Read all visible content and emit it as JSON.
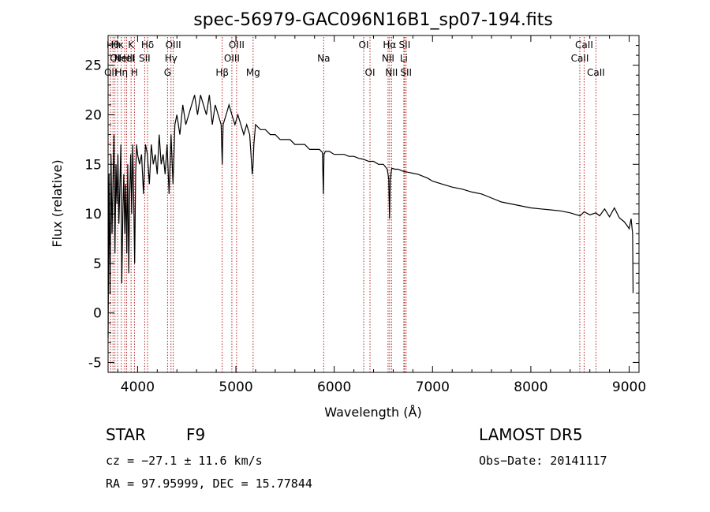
{
  "chart_data": {
    "type": "line",
    "title": "spec-56979-GAC096N16B1_sp07-194.fits",
    "xlabel": "Wavelength (Å)",
    "ylabel": "Flux (relative)",
    "xlim": [
      3700,
      9100
    ],
    "ylim": [
      -6,
      28
    ],
    "xticks": [
      4000,
      5000,
      6000,
      7000,
      8000,
      9000
    ],
    "yticks": [
      -5,
      0,
      5,
      10,
      15,
      20,
      25
    ],
    "grid": false,
    "line_color": "#000000",
    "marker_color": "#b22222",
    "series": [
      {
        "x": [
          3700,
          3710,
          3720,
          3730,
          3740,
          3750,
          3760,
          3770,
          3780,
          3790,
          3800,
          3810,
          3820,
          3830,
          3840,
          3850,
          3860,
          3870,
          3880,
          3890,
          3900,
          3910,
          3920,
          3930,
          3940,
          3950,
          3960,
          3970,
          3980,
          3990,
          4000,
          4020,
          4040,
          4060,
          4080,
          4100,
          4120,
          4140,
          4160,
          4180,
          4200,
          4220,
          4240,
          4260,
          4280,
          4300,
          4320,
          4340,
          4360,
          4380,
          4400,
          4430,
          4460,
          4490,
          4520,
          4550,
          4580,
          4610,
          4640,
          4670,
          4700,
          4730,
          4760,
          4790,
          4820,
          4850,
          4861,
          4870,
          4900,
          4930,
          4960,
          4990,
          5020,
          5050,
          5080,
          5110,
          5140,
          5167,
          5175,
          5183,
          5200,
          5250,
          5300,
          5350,
          5400,
          5450,
          5500,
          5550,
          5600,
          5650,
          5700,
          5750,
          5800,
          5850,
          5880,
          5890,
          5896,
          5910,
          5950,
          6000,
          6050,
          6100,
          6150,
          6200,
          6250,
          6300,
          6350,
          6400,
          6450,
          6500,
          6540,
          6555,
          6563,
          6570,
          6585,
          6620,
          6650,
          6700,
          6750,
          6800,
          6850,
          6900,
          6950,
          7000,
          7100,
          7200,
          7300,
          7400,
          7500,
          7600,
          7700,
          7800,
          7900,
          8000,
          8100,
          8200,
          8300,
          8400,
          8500,
          8542,
          8600,
          8662,
          8700,
          8750,
          8800,
          8850,
          8900,
          8950,
          8980,
          9000,
          9020,
          9035,
          9040
        ],
        "y": [
          -2.5,
          14,
          2,
          16,
          8,
          13,
          18,
          6,
          15,
          11,
          16,
          9,
          13,
          17,
          3,
          10,
          14,
          8,
          13,
          6,
          15,
          4,
          12,
          16,
          10,
          17,
          12,
          5,
          14,
          17,
          16,
          15,
          16,
          12,
          17,
          16,
          13,
          17,
          15,
          16,
          14,
          18,
          15,
          16,
          14,
          17,
          12,
          18,
          13,
          19,
          20,
          18,
          21,
          19,
          20,
          21,
          22,
          20,
          22,
          21,
          20,
          22,
          19,
          21,
          20,
          19,
          15,
          19,
          20,
          21,
          20,
          19,
          20,
          19,
          18,
          19,
          18,
          14,
          15,
          17,
          19,
          18.5,
          18.5,
          18,
          18,
          17.5,
          17.5,
          17.5,
          17,
          17,
          17,
          16.5,
          16.5,
          16.5,
          16.2,
          12,
          16,
          16.3,
          16.3,
          16,
          16,
          16,
          15.8,
          15.8,
          15.6,
          15.5,
          15.3,
          15.3,
          15,
          15,
          14.5,
          13.5,
          9.5,
          13.5,
          14.6,
          14.5,
          14.5,
          14.3,
          14.2,
          14.1,
          14,
          13.8,
          13.6,
          13.3,
          13,
          12.7,
          12.5,
          12.2,
          12,
          11.6,
          11.2,
          11,
          10.8,
          10.6,
          10.5,
          10.4,
          10.3,
          10.1,
          9.8,
          10.2,
          9.9,
          10.1,
          9.8,
          10.5,
          9.7,
          10.6,
          9.6,
          9.2,
          8.8,
          8.5,
          9.5,
          8,
          2
        ]
      }
    ],
    "line_markers": [
      {
        "wavelength": 3726,
        "label": "OII",
        "row": 2
      },
      {
        "wavelength": 3750,
        "label": "Hθ",
        "row": 0
      },
      {
        "wavelength": 3770,
        "label": "OI",
        "row": 1
      },
      {
        "wavelength": 3797,
        "label": "Hκ",
        "row": 0
      },
      {
        "wavelength": 3835,
        "label": "Hη",
        "row": 2
      },
      {
        "wavelength": 3869,
        "label": "NeIII",
        "row": 1
      },
      {
        "wavelength": 3889,
        "label": "HeI",
        "row": 1
      },
      {
        "wavelength": 3934,
        "label": "K",
        "row": 0
      },
      {
        "wavelength": 3968,
        "label": "H",
        "row": 2
      },
      {
        "wavelength": 4072,
        "label": "SII",
        "row": 1
      },
      {
        "wavelength": 4102,
        "label": "Hδ",
        "row": 0
      },
      {
        "wavelength": 4305,
        "label": "G",
        "row": 2
      },
      {
        "wavelength": 4340,
        "label": "Hγ",
        "row": 1
      },
      {
        "wavelength": 4363,
        "label": "OIII",
        "row": 0
      },
      {
        "wavelength": 4861,
        "label": "Hβ",
        "row": 2
      },
      {
        "wavelength": 4959,
        "label": "OIII",
        "row": 1
      },
      {
        "wavelength": 5007,
        "label": "OIII",
        "row": 0
      },
      {
        "wavelength": 5175,
        "label": "Mg",
        "row": 2
      },
      {
        "wavelength": 5893,
        "label": "Na",
        "row": 1
      },
      {
        "wavelength": 6300,
        "label": "OI",
        "row": 0
      },
      {
        "wavelength": 6364,
        "label": "OI",
        "row": 2
      },
      {
        "wavelength": 6548,
        "label": "NII",
        "row": 1
      },
      {
        "wavelength": 6563,
        "label": "Hα",
        "row": 0
      },
      {
        "wavelength": 6583,
        "label": "NII",
        "row": 2
      },
      {
        "wavelength": 6708,
        "label": "Li",
        "row": 1
      },
      {
        "wavelength": 6716,
        "label": "SII",
        "row": 0
      },
      {
        "wavelength": 6731,
        "label": "SII",
        "row": 2
      },
      {
        "wavelength": 8498,
        "label": "CaII",
        "row": 1
      },
      {
        "wavelength": 8542,
        "label": "CaII",
        "row": 0
      },
      {
        "wavelength": 8662,
        "label": "CaII",
        "row": 2
      }
    ]
  },
  "info": {
    "class": "STAR",
    "subclass": "F9",
    "survey": "LAMOST DR5",
    "cz": "cz = −27.1 ± 11.6 km/s",
    "obs_date": "Obs−Date: 20141117",
    "coords": "RA =  97.95999, DEC =  15.77844"
  }
}
